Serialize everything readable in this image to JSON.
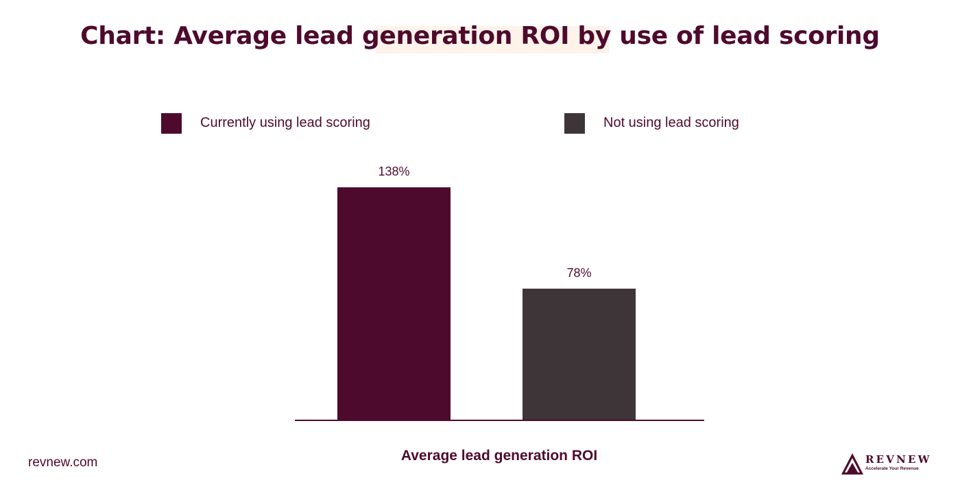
{
  "footer": {
    "site": "revnew.com"
  },
  "logo": {
    "wordmark": "REVNEW",
    "tagline": "Accelerate Your Revenue"
  },
  "colors": {
    "brand": "#4e0a2c",
    "highlight": "#fdf3ea"
  },
  "chart_data": {
    "type": "bar",
    "title": "Chart: Average lead generation ROI by use of lead scoring",
    "xlabel": "Average lead generation ROI",
    "ylabel": "",
    "ylim": [
      0,
      160
    ],
    "grid": false,
    "legend_position": "top",
    "categories": [
      "Average lead generation ROI"
    ],
    "series": [
      {
        "name": "Currently using lead scoring",
        "values": [
          138
        ],
        "label": "138%",
        "color": "#4e0a2c"
      },
      {
        "name": "Not using lead scoring",
        "values": [
          78
        ],
        "label": "78%",
        "color": "#3e3539"
      }
    ]
  }
}
